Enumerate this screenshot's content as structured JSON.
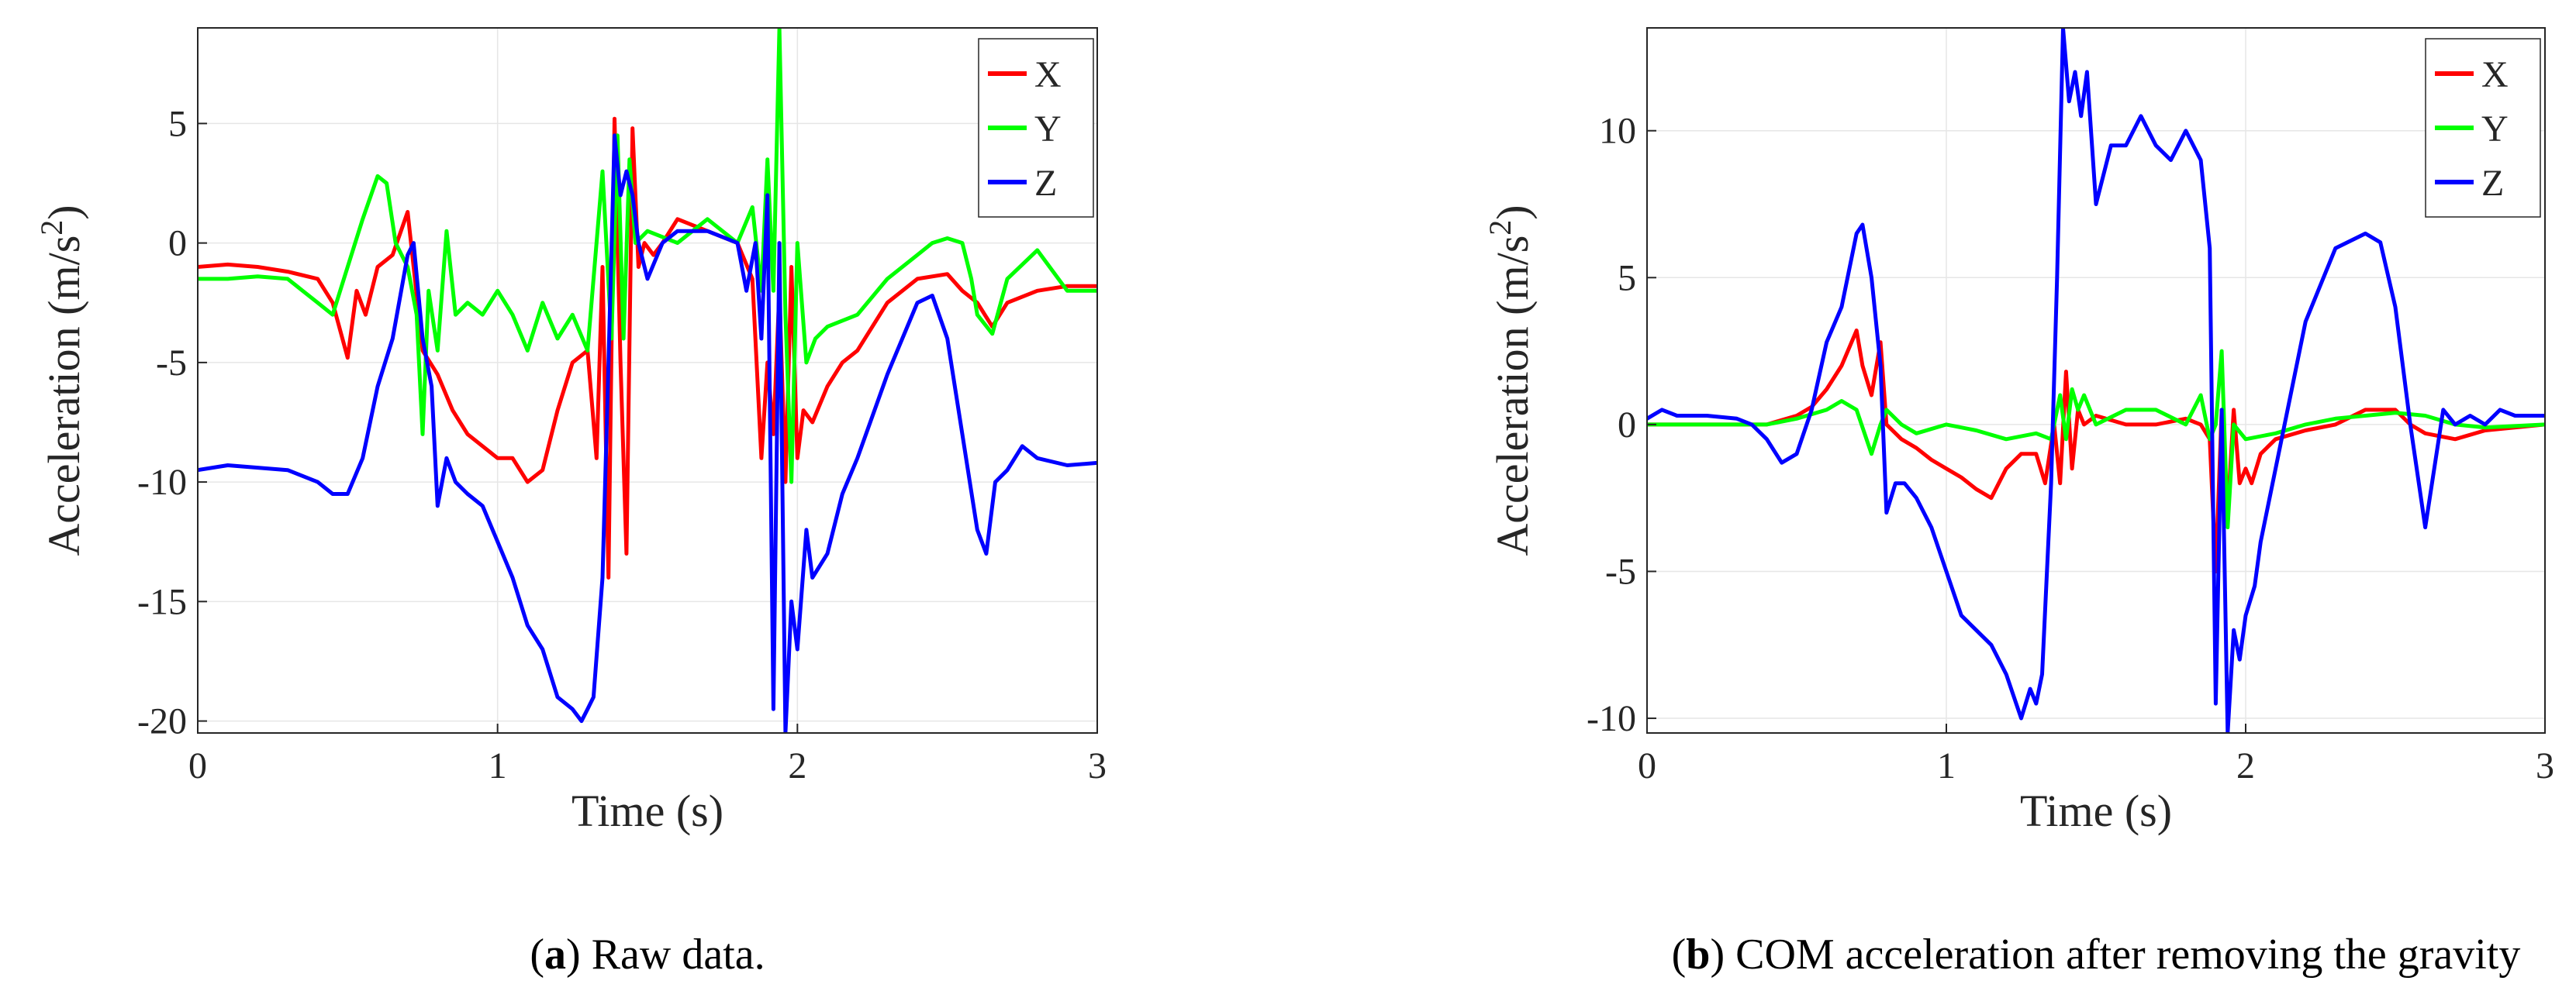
{
  "chart_data": [
    {
      "type": "line",
      "caption_letter": "a",
      "caption_text": " Raw data.",
      "xlabel": "Time (s)",
      "ylabel": "Acceleration (m/s",
      "ylabel_sup": "2",
      "ylabel_close": ")",
      "xlim": [
        0,
        3
      ],
      "ylim": [
        -20.5,
        9
      ],
      "xticks": [
        0,
        1,
        2,
        3
      ],
      "yticks": [
        -20,
        -15,
        -10,
        -5,
        0,
        5
      ],
      "grid": true,
      "legend_position": "top-right",
      "series": [
        {
          "name": "X",
          "color": "#ff0000",
          "x": [
            0,
            0.1,
            0.2,
            0.3,
            0.4,
            0.45,
            0.5,
            0.53,
            0.56,
            0.6,
            0.65,
            0.7,
            0.72,
            0.75,
            0.8,
            0.85,
            0.9,
            0.95,
            1.0,
            1.05,
            1.1,
            1.15,
            1.2,
            1.25,
            1.3,
            1.33,
            1.35,
            1.37,
            1.39,
            1.41,
            1.43,
            1.45,
            1.47,
            1.49,
            1.52,
            1.55,
            1.6,
            1.7,
            1.8,
            1.85,
            1.88,
            1.9,
            1.92,
            1.94,
            1.96,
            1.98,
            2.0,
            2.02,
            2.05,
            2.1,
            2.15,
            2.2,
            2.3,
            2.4,
            2.5,
            2.55,
            2.6,
            2.65,
            2.7,
            2.8,
            2.9,
            3.0
          ],
          "y": [
            -1,
            -0.9,
            -1.0,
            -1.2,
            -1.5,
            -2.5,
            -4.8,
            -2.0,
            -3.0,
            -1.0,
            -0.5,
            1.3,
            -1.0,
            -4.5,
            -5.5,
            -7.0,
            -8.0,
            -8.5,
            -9.0,
            -9.0,
            -10.0,
            -9.5,
            -7.0,
            -5.0,
            -4.5,
            -9.0,
            -1.0,
            -14.0,
            5.2,
            -5.0,
            -13.0,
            4.8,
            -1.0,
            0.0,
            -0.5,
            0.0,
            1.0,
            0.5,
            0.0,
            -1.5,
            -9.0,
            -5.0,
            -8.0,
            -2.0,
            -10.0,
            -1.0,
            -9.0,
            -7.0,
            -7.5,
            -6.0,
            -5.0,
            -4.5,
            -2.5,
            -1.5,
            -1.3,
            -2.0,
            -2.5,
            -3.5,
            -2.5,
            -2.0,
            -1.8,
            -1.8
          ]
        },
        {
          "name": "Y",
          "color": "#00ff00",
          "x": [
            0,
            0.1,
            0.2,
            0.3,
            0.35,
            0.4,
            0.45,
            0.5,
            0.55,
            0.6,
            0.63,
            0.66,
            0.7,
            0.73,
            0.75,
            0.77,
            0.8,
            0.83,
            0.86,
            0.9,
            0.95,
            1.0,
            1.05,
            1.1,
            1.15,
            1.2,
            1.25,
            1.3,
            1.35,
            1.38,
            1.4,
            1.42,
            1.44,
            1.46,
            1.5,
            1.6,
            1.7,
            1.8,
            1.85,
            1.88,
            1.9,
            1.92,
            1.94,
            1.96,
            1.98,
            2.0,
            2.03,
            2.06,
            2.1,
            2.2,
            2.3,
            2.4,
            2.45,
            2.5,
            2.55,
            2.58,
            2.6,
            2.65,
            2.7,
            2.8,
            2.9,
            3.0
          ],
          "y": [
            -1.5,
            -1.5,
            -1.4,
            -1.5,
            -2.0,
            -2.5,
            -3.0,
            -1.0,
            1.0,
            2.8,
            2.5,
            0.0,
            -1.0,
            -3.0,
            -8.0,
            -2.0,
            -4.5,
            0.5,
            -3.0,
            -2.5,
            -3.0,
            -2.0,
            -3.0,
            -4.5,
            -2.5,
            -4.0,
            -3.0,
            -4.5,
            3.0,
            -4.0,
            4.5,
            -4.0,
            3.5,
            0.0,
            0.5,
            0.0,
            1.0,
            0.0,
            1.5,
            -2.0,
            3.5,
            -2.0,
            9.0,
            -3.0,
            -10.0,
            0.0,
            -5.0,
            -4.0,
            -3.5,
            -3.0,
            -1.5,
            -0.5,
            0.0,
            0.2,
            0.0,
            -1.5,
            -3.0,
            -3.8,
            -1.5,
            -0.3,
            -2.0,
            -2.0
          ]
        },
        {
          "name": "Z",
          "color": "#0000ff",
          "x": [
            0,
            0.1,
            0.2,
            0.3,
            0.4,
            0.45,
            0.5,
            0.55,
            0.6,
            0.65,
            0.7,
            0.72,
            0.75,
            0.78,
            0.8,
            0.83,
            0.86,
            0.9,
            0.95,
            1.0,
            1.05,
            1.1,
            1.15,
            1.2,
            1.25,
            1.28,
            1.3,
            1.32,
            1.35,
            1.37,
            1.39,
            1.41,
            1.43,
            1.45,
            1.47,
            1.5,
            1.55,
            1.6,
            1.7,
            1.8,
            1.83,
            1.86,
            1.88,
            1.9,
            1.92,
            1.94,
            1.96,
            1.98,
            2.0,
            2.03,
            2.05,
            2.1,
            2.15,
            2.2,
            2.3,
            2.4,
            2.45,
            2.5,
            2.55,
            2.6,
            2.63,
            2.66,
            2.7,
            2.75,
            2.8,
            2.9,
            3.0
          ],
          "y": [
            -9.5,
            -9.3,
            -9.4,
            -9.5,
            -10.0,
            -10.5,
            -10.5,
            -9.0,
            -6.0,
            -4.0,
            -0.5,
            0.0,
            -4.0,
            -6.0,
            -11.0,
            -9.0,
            -10.0,
            -10.5,
            -11.0,
            -12.5,
            -14.0,
            -16.0,
            -17.0,
            -19.0,
            -19.5,
            -20.0,
            -19.5,
            -19.0,
            -14.0,
            -5.0,
            4.5,
            2.0,
            3.0,
            2.0,
            0.0,
            -1.5,
            0.0,
            0.5,
            0.5,
            0.0,
            -2.0,
            0.0,
            -4.0,
            2.0,
            -19.5,
            0.0,
            -20.5,
            -15.0,
            -17.0,
            -12.0,
            -14.0,
            -13.0,
            -10.5,
            -9.0,
            -5.5,
            -2.5,
            -2.2,
            -4.0,
            -8.0,
            -12.0,
            -13.0,
            -10.0,
            -9.5,
            -8.5,
            -9.0,
            -9.3,
            -9.2
          ]
        }
      ]
    },
    {
      "type": "line",
      "caption_letter": "b",
      "caption_text": " COM acceleration after removing the gravity",
      "xlabel": "Time (s)",
      "ylabel": "Acceleration (m/s",
      "ylabel_sup": "2",
      "ylabel_close": ")",
      "xlim": [
        0,
        3
      ],
      "ylim": [
        -10.5,
        13.5
      ],
      "xticks": [
        0,
        1,
        2,
        3
      ],
      "yticks": [
        -10,
        -5,
        0,
        5,
        10
      ],
      "grid": true,
      "legend_position": "top-right",
      "series": [
        {
          "name": "X",
          "color": "#ff0000",
          "x": [
            0,
            0.2,
            0.4,
            0.5,
            0.55,
            0.6,
            0.65,
            0.7,
            0.72,
            0.75,
            0.78,
            0.8,
            0.85,
            0.9,
            0.95,
            1.0,
            1.05,
            1.1,
            1.15,
            1.2,
            1.25,
            1.3,
            1.33,
            1.36,
            1.38,
            1.4,
            1.42,
            1.44,
            1.46,
            1.5,
            1.6,
            1.7,
            1.8,
            1.85,
            1.88,
            1.9,
            1.92,
            1.94,
            1.96,
            1.98,
            2.0,
            2.02,
            2.05,
            2.1,
            2.2,
            2.3,
            2.4,
            2.5,
            2.55,
            2.6,
            2.7,
            2.8,
            3.0
          ],
          "y": [
            0,
            0,
            0,
            0.3,
            0.6,
            1.2,
            2.0,
            3.2,
            2.0,
            1.0,
            2.8,
            0.0,
            -0.5,
            -0.8,
            -1.2,
            -1.5,
            -1.8,
            -2.2,
            -2.5,
            -1.5,
            -1.0,
            -1.0,
            -2.0,
            0.0,
            -2.0,
            1.8,
            -1.5,
            0.5,
            0.0,
            0.3,
            0.0,
            0.0,
            0.2,
            0.0,
            -0.5,
            -5.0,
            0.5,
            -3.0,
            0.5,
            -2.0,
            -1.5,
            -2.0,
            -1.0,
            -0.5,
            -0.2,
            0.0,
            0.5,
            0.5,
            0.0,
            -0.3,
            -0.5,
            -0.2,
            0.0
          ]
        },
        {
          "name": "Y",
          "color": "#00ff00",
          "x": [
            0,
            0.2,
            0.4,
            0.5,
            0.6,
            0.65,
            0.7,
            0.75,
            0.78,
            0.8,
            0.85,
            0.9,
            1.0,
            1.1,
            1.2,
            1.3,
            1.35,
            1.38,
            1.4,
            1.42,
            1.44,
            1.46,
            1.5,
            1.6,
            1.7,
            1.8,
            1.85,
            1.88,
            1.9,
            1.92,
            1.94,
            1.96,
            2.0,
            2.1,
            2.2,
            2.3,
            2.4,
            2.5,
            2.6,
            2.7,
            2.8,
            3.0
          ],
          "y": [
            0,
            0,
            0,
            0.2,
            0.5,
            0.8,
            0.5,
            -1.0,
            0.0,
            0.5,
            0.0,
            -0.3,
            0.0,
            -0.2,
            -0.5,
            -0.3,
            -0.5,
            1.0,
            -0.5,
            1.2,
            0.5,
            1.0,
            0.0,
            0.5,
            0.5,
            0.0,
            1.0,
            -0.5,
            0.0,
            2.5,
            -3.5,
            0.0,
            -0.5,
            -0.3,
            0.0,
            0.2,
            0.3,
            0.4,
            0.3,
            0.0,
            -0.1,
            0.0
          ]
        },
        {
          "name": "Z",
          "color": "#0000ff",
          "x": [
            0,
            0.05,
            0.1,
            0.2,
            0.3,
            0.35,
            0.4,
            0.45,
            0.5,
            0.55,
            0.6,
            0.65,
            0.7,
            0.72,
            0.75,
            0.78,
            0.8,
            0.83,
            0.86,
            0.9,
            0.95,
            1.0,
            1.05,
            1.1,
            1.15,
            1.2,
            1.25,
            1.28,
            1.3,
            1.32,
            1.35,
            1.37,
            1.39,
            1.41,
            1.43,
            1.45,
            1.47,
            1.5,
            1.55,
            1.6,
            1.65,
            1.7,
            1.75,
            1.8,
            1.85,
            1.88,
            1.9,
            1.92,
            1.94,
            1.96,
            1.98,
            2.0,
            2.03,
            2.05,
            2.1,
            2.15,
            2.2,
            2.3,
            2.4,
            2.45,
            2.5,
            2.55,
            2.6,
            2.63,
            2.66,
            2.7,
            2.75,
            2.8,
            2.85,
            2.9,
            3.0
          ],
          "y": [
            0.2,
            0.5,
            0.3,
            0.3,
            0.2,
            0.0,
            -0.5,
            -1.3,
            -1.0,
            0.5,
            2.8,
            4.0,
            6.5,
            6.8,
            5.0,
            2.0,
            -3.0,
            -2.0,
            -2.0,
            -2.5,
            -3.5,
            -5.0,
            -6.5,
            -7.0,
            -7.5,
            -8.5,
            -10.0,
            -9.0,
            -9.5,
            -8.5,
            -2.0,
            5.0,
            13.5,
            11.0,
            12.0,
            10.5,
            12.0,
            7.5,
            9.5,
            9.5,
            10.5,
            9.5,
            9.0,
            10.0,
            9.0,
            6.0,
            -9.5,
            0.5,
            -10.5,
            -7.0,
            -8.0,
            -6.5,
            -5.5,
            -4.0,
            -1.5,
            1.0,
            3.5,
            6.0,
            6.5,
            6.2,
            4.0,
            0.0,
            -3.5,
            -1.5,
            0.5,
            0.0,
            0.3,
            0.0,
            0.5,
            0.3,
            0.3
          ]
        }
      ]
    }
  ]
}
